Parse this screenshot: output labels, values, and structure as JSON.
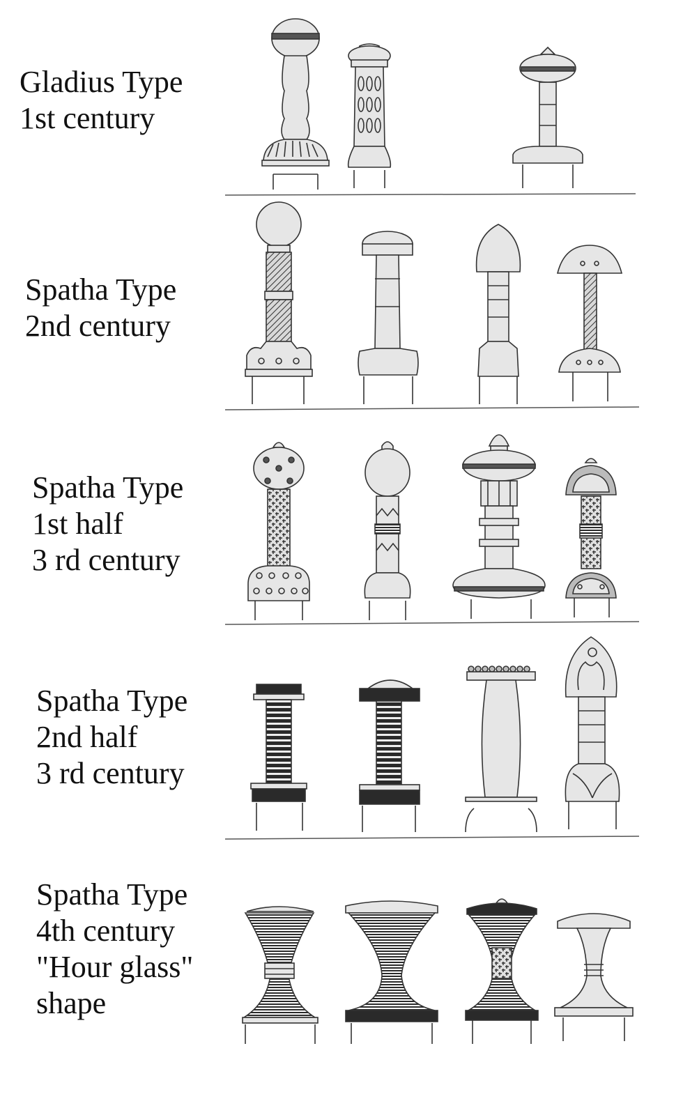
{
  "rows": [
    {
      "lines": [
        "Gladius Type",
        "1st century"
      ]
    },
    {
      "lines": [
        "Spatha Type",
        "2nd century"
      ]
    },
    {
      "lines": [
        "Spatha Type",
        "1st half",
        "3 rd century"
      ]
    },
    {
      "lines": [
        "Spatha Type",
        "2nd half",
        "3 rd century"
      ]
    },
    {
      "lines": [
        "Spatha Type",
        "4th century",
        "\"Hour glass\"",
        "shape"
      ]
    }
  ],
  "colors": {
    "fill": "#e6e6e6",
    "stroke": "#333333",
    "dark": "#2a2a2a"
  }
}
